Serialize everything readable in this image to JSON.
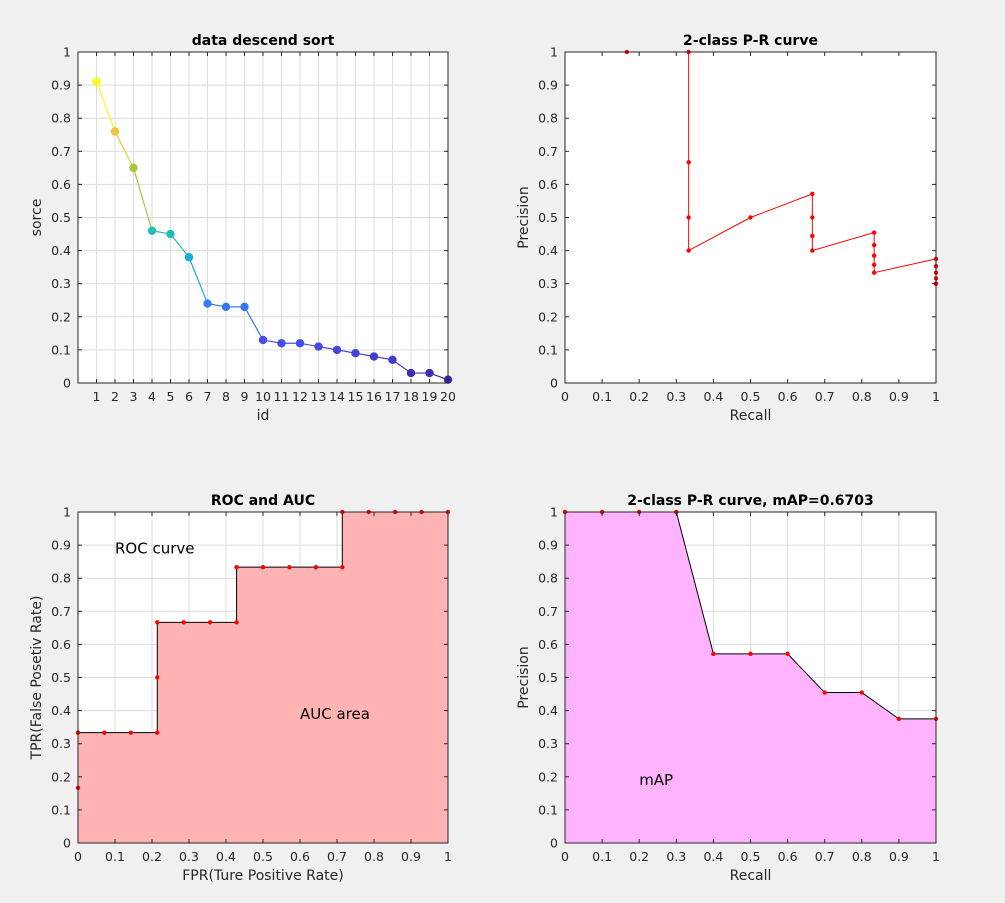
{
  "figure": {
    "background": "#f0f0f0"
  },
  "chart_data": [
    {
      "type": "scatter",
      "title": "data descend sort",
      "xlabel": "id",
      "ylabel": "sorce",
      "xlim": [
        0,
        20
      ],
      "ylim": [
        0,
        1
      ],
      "grid": true,
      "x_ticks": [
        "1",
        "2",
        "3",
        "4",
        "5",
        "6",
        "7",
        "8",
        "9",
        "10",
        "11",
        "12",
        "13",
        "14",
        "15",
        "16",
        "17",
        "18",
        "19",
        "20"
      ],
      "y_ticks": [
        "0",
        "0.1",
        "0.2",
        "0.3",
        "0.4",
        "0.5",
        "0.6",
        "0.7",
        "0.8",
        "0.9",
        "1"
      ],
      "colormap": "parula",
      "x": [
        1,
        2,
        3,
        4,
        5,
        6,
        7,
        8,
        9,
        10,
        11,
        12,
        13,
        14,
        15,
        16,
        17,
        18,
        19,
        20
      ],
      "y": [
        0.91,
        0.76,
        0.65,
        0.46,
        0.45,
        0.38,
        0.24,
        0.23,
        0.23,
        0.13,
        0.12,
        0.12,
        0.11,
        0.1,
        0.09,
        0.08,
        0.07,
        0.03,
        0.03,
        0.01
      ]
    },
    {
      "type": "line",
      "title": "2-class P-R curve",
      "xlabel": "Recall",
      "ylabel": "Precision",
      "xlim": [
        0,
        1
      ],
      "ylim": [
        0,
        1
      ],
      "grid": false,
      "x_ticks": [
        "0",
        "0.1",
        "0.2",
        "0.3",
        "0.4",
        "0.5",
        "0.6",
        "0.7",
        "0.8",
        "0.9",
        "1"
      ],
      "y_ticks": [
        "0",
        "0.1",
        "0.2",
        "0.3",
        "0.4",
        "0.5",
        "0.6",
        "0.7",
        "0.8",
        "0.9",
        "1"
      ],
      "line_color": "#ff0000",
      "x": [
        0.1667,
        0.3333,
        0.3333,
        0.3333,
        0.3333,
        0.5,
        0.6667,
        0.6667,
        0.6667,
        0.6667,
        0.8333,
        0.8333,
        0.8333,
        0.8333,
        0.8333,
        1,
        1,
        1,
        1,
        1,
        1
      ],
      "y": [
        1,
        1,
        0.6667,
        0.5,
        0.4,
        0.5,
        0.5714,
        0.5,
        0.4444,
        0.4,
        0.4545,
        0.4167,
        0.3846,
        0.3571,
        0.3333,
        0.375,
        0.3529,
        0.3333,
        0.3158,
        0.3,
        0.3
      ]
    },
    {
      "type": "area",
      "title": "ROC and AUC",
      "xlabel": "FPR(Ture Positive Rate)",
      "ylabel": "TPR(False Posetiv Rate)",
      "xlim": [
        0,
        1
      ],
      "ylim": [
        0,
        1
      ],
      "grid": true,
      "x_ticks": [
        "0",
        "0.1",
        "0.2",
        "0.3",
        "0.4",
        "0.5",
        "0.6",
        "0.7",
        "0.8",
        "0.9",
        "1"
      ],
      "y_ticks": [
        "0",
        "0.1",
        "0.2",
        "0.3",
        "0.4",
        "0.5",
        "0.6",
        "0.7",
        "0.8",
        "0.9",
        "1"
      ],
      "fill_color": "#ffb3b3",
      "line_color": "#000000",
      "marker_color": "#ff0000",
      "annotations": [
        {
          "text": "ROC curve",
          "x": 0.1,
          "y": 0.89
        },
        {
          "text": "AUC area",
          "x": 0.6,
          "y": 0.39
        }
      ],
      "x": [
        0,
        0,
        0.0714,
        0.1429,
        0.2143,
        0.2143,
        0.2143,
        0.2857,
        0.3571,
        0.4286,
        0.4286,
        0.5,
        0.5714,
        0.6429,
        0.7143,
        0.7143,
        0.7857,
        0.8571,
        0.9286,
        1
      ],
      "y": [
        0.1667,
        0.3333,
        0.3333,
        0.3333,
        0.3333,
        0.5,
        0.6667,
        0.6667,
        0.6667,
        0.6667,
        0.8333,
        0.8333,
        0.8333,
        0.8333,
        0.8333,
        1,
        1,
        1,
        1,
        1
      ]
    },
    {
      "type": "area",
      "title": "2-class P-R curve, mAP=0.6703",
      "xlabel": "Recall",
      "ylabel": "Precision",
      "xlim": [
        0,
        1
      ],
      "ylim": [
        0,
        1
      ],
      "grid": true,
      "x_ticks": [
        "0",
        "0.1",
        "0.2",
        "0.3",
        "0.4",
        "0.5",
        "0.6",
        "0.7",
        "0.8",
        "0.9",
        "1"
      ],
      "y_ticks": [
        "0",
        "0.1",
        "0.2",
        "0.3",
        "0.4",
        "0.5",
        "0.6",
        "0.7",
        "0.8",
        "0.9",
        "1"
      ],
      "fill_color": "#ffb3ff",
      "line_color": "#000000",
      "marker_color": "#ff0000",
      "annotations": [
        {
          "text": "mAP",
          "x": 0.2,
          "y": 0.19
        }
      ],
      "x": [
        0,
        0.1,
        0.2,
        0.3,
        0.4,
        0.5,
        0.6,
        0.7,
        0.8,
        0.9,
        1
      ],
      "y": [
        1,
        1,
        1,
        1,
        0.5714,
        0.5714,
        0.5714,
        0.4545,
        0.4545,
        0.375,
        0.375
      ]
    }
  ]
}
